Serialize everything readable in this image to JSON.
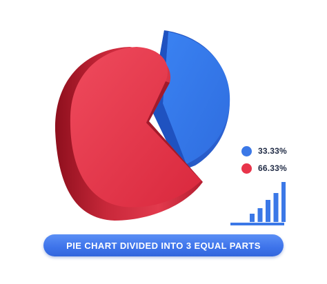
{
  "chart_data": {
    "type": "pie",
    "title": "",
    "slices": [
      {
        "label": "33.33%",
        "value": 33.33,
        "color": "#3b78e7"
      },
      {
        "label": "66.33%",
        "value": 66.33,
        "color": "#e8344a"
      }
    ]
  },
  "legend": {
    "items": [
      {
        "text": "33.33%",
        "color": "#3b78e7"
      },
      {
        "text": "66.33%",
        "color": "#e8344a"
      }
    ]
  },
  "bar_icon": {
    "color": "#3b78e7",
    "levels": [
      0.2,
      0.35,
      0.55,
      0.72,
      1.0
    ]
  },
  "banner": {
    "text": "PIE CHART DIVIDED INTO 3 EQUAL PARTS",
    "color": "#4a80f0"
  }
}
